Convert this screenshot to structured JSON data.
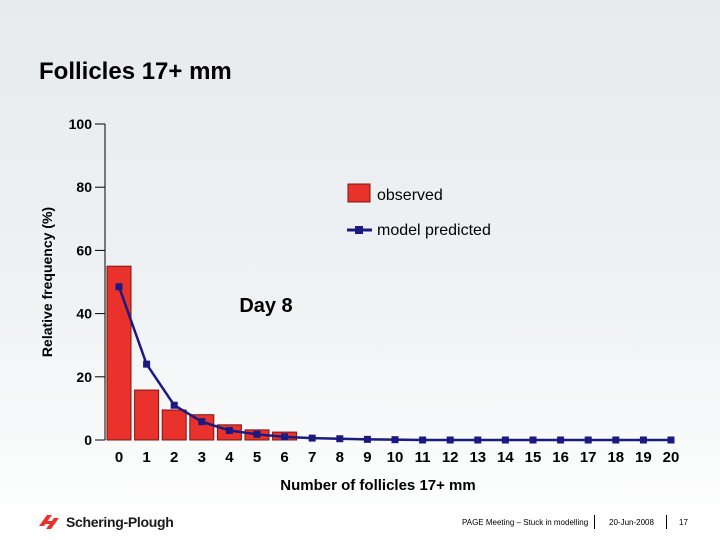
{
  "slide": {
    "title": "Follicles 17+ mm"
  },
  "chart_data": {
    "type": "bar",
    "title": "Follicles 17+ mm",
    "xlabel": "Number of follicles 17+ mm",
    "ylabel": "Relative frequency (%)",
    "ylim": [
      0,
      100
    ],
    "yticks": [
      0,
      20,
      40,
      60,
      80,
      100
    ],
    "categories": [
      "0",
      "1",
      "2",
      "3",
      "4",
      "5",
      "6",
      "7",
      "8",
      "9",
      "10",
      "11",
      "12",
      "13",
      "14",
      "15",
      "16",
      "17",
      "18",
      "19",
      "20"
    ],
    "annotation": "Day 8",
    "series": [
      {
        "name": "observed",
        "kind": "bar",
        "color": "#e8322b",
        "values": [
          55.0,
          15.8,
          9.5,
          8.0,
          4.8,
          3.2,
          2.5,
          0,
          0,
          0,
          0,
          0,
          0,
          0,
          0,
          0,
          0,
          0,
          0,
          0,
          0
        ]
      },
      {
        "name": "model predicted",
        "kind": "line",
        "color": "#1a1a80",
        "values": [
          48.5,
          24.0,
          11.0,
          5.8,
          3.0,
          1.8,
          1.0,
          0.6,
          0.4,
          0.2,
          0.1,
          0,
          0,
          0,
          0,
          0,
          0,
          0,
          0,
          0,
          0
        ]
      }
    ],
    "legend_position": "top-right"
  },
  "footer": {
    "brand": "Schering-Plough",
    "meeting": "PAGE Meeting – Stuck in modelling",
    "date": "20-Jun-2008",
    "page": "17"
  },
  "colors": {
    "bar_fill": "#e8322b",
    "bar_stroke": "#7a1510",
    "line": "#1a1a80",
    "logo_red": "#e8322b"
  }
}
